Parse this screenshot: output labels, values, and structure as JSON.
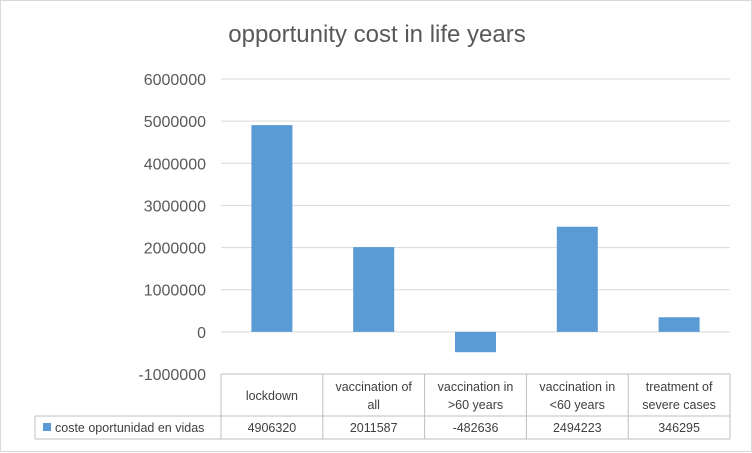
{
  "chart_data": {
    "type": "bar",
    "title": "opportunity cost in life years",
    "categories": [
      [
        "lockdown"
      ],
      [
        "vaccination of",
        "all"
      ],
      [
        "vaccination in",
        ">60 years"
      ],
      [
        "vaccination in",
        "<60 years"
      ],
      [
        "treatment of",
        "severe cases"
      ]
    ],
    "series": [
      {
        "name": "coste oportunidad en vidas",
        "values": [
          4906320,
          2011587,
          -482636,
          2494223,
          346295
        ],
        "value_labels": [
          "4906320",
          "2011587",
          "-482636",
          "2494223",
          "346295"
        ],
        "color": "#5b9bd5"
      }
    ],
    "ylim": [
      -1000000,
      6000000
    ],
    "yticks": [
      "6000000",
      "5000000",
      "4000000",
      "3000000",
      "2000000",
      "1000000",
      "0",
      "-1000000"
    ],
    "data_table": true,
    "gridlines": true
  }
}
